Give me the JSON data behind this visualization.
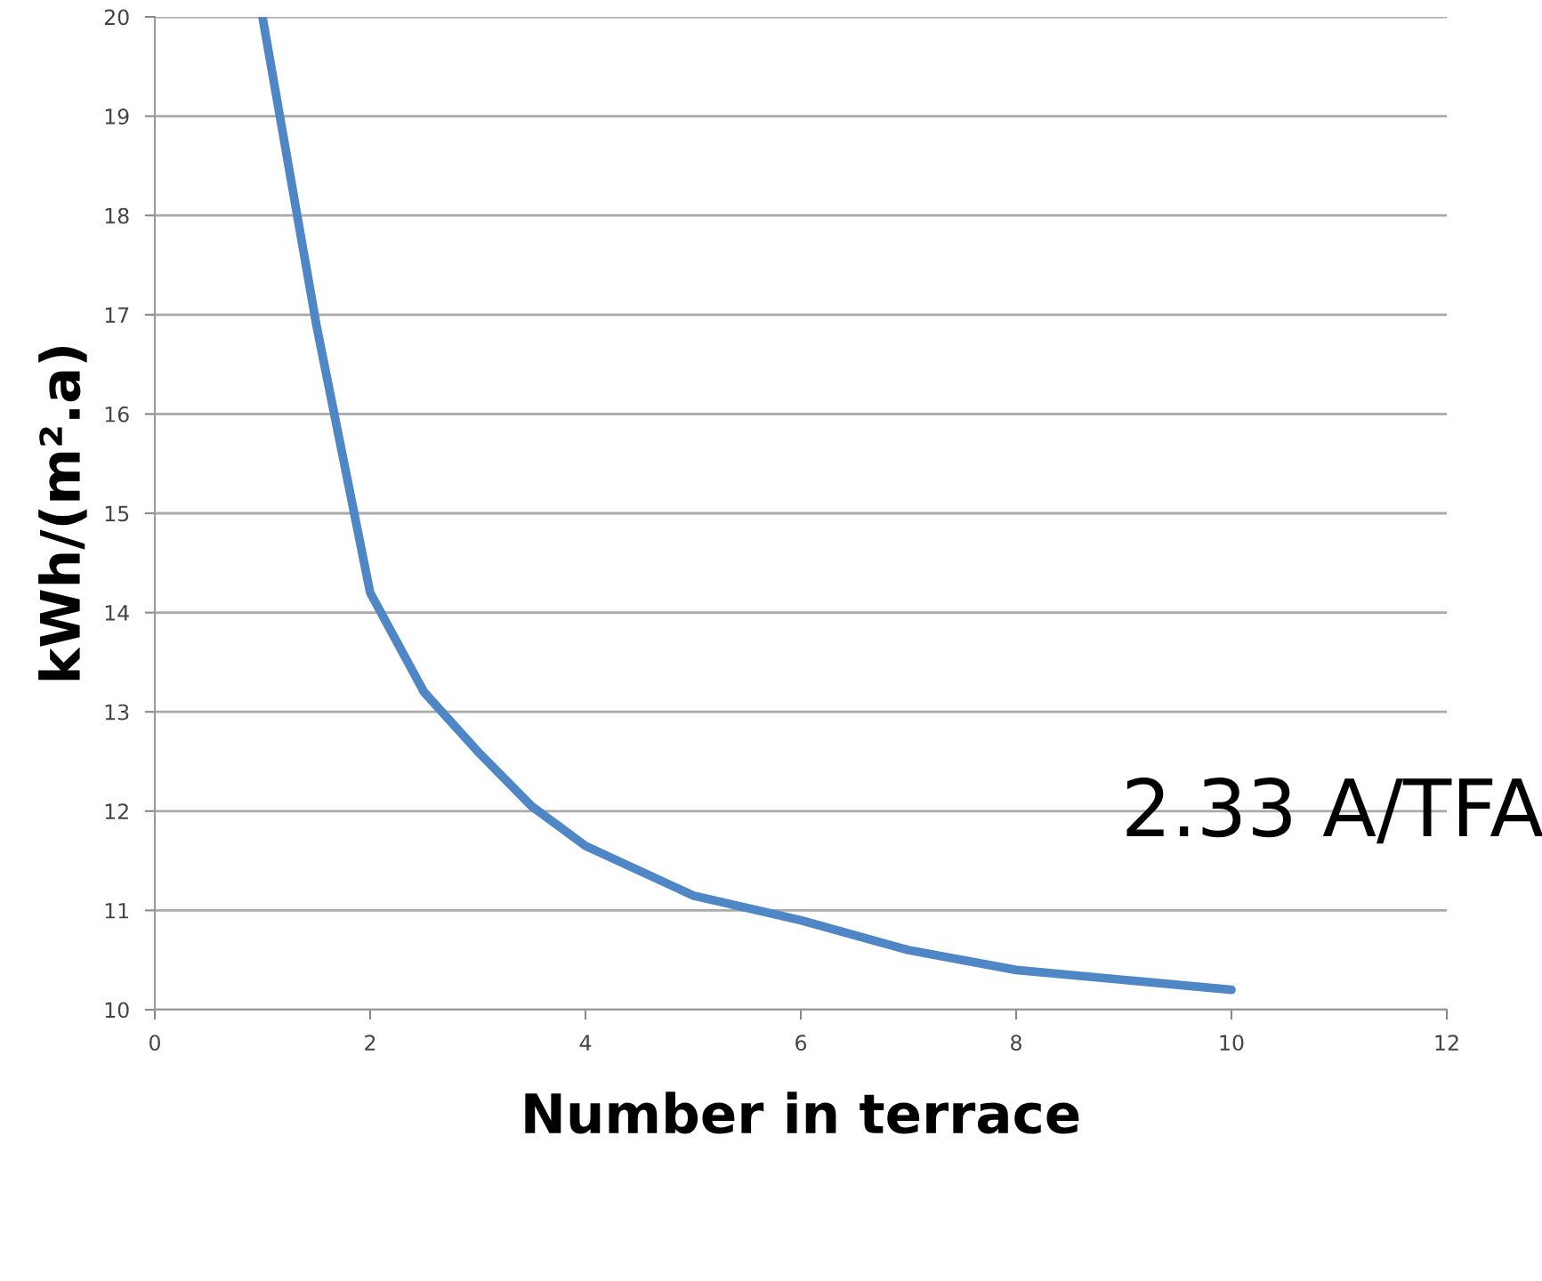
{
  "chart_data": {
    "type": "line",
    "xlabel": "Number in terrace",
    "ylabel": "kWh/(m².a)",
    "x": [
      1,
      1.5,
      2,
      2.5,
      3,
      3.5,
      4,
      5,
      6,
      7,
      8,
      9,
      10
    ],
    "series": [
      {
        "color": "#4f86c6",
        "values": [
          20,
          16.9,
          14.2,
          13.2,
          12.6,
          12.05,
          11.65,
          11.15,
          10.9,
          10.6,
          10.4,
          10.3,
          10.2
        ]
      }
    ],
    "xlim": [
      0,
      12
    ],
    "xticks": [
      0,
      2,
      4,
      6,
      8,
      10,
      12
    ],
    "ylim": [
      10,
      20
    ],
    "yticks": [
      10,
      11,
      12,
      13,
      14,
      15,
      16,
      17,
      18,
      19,
      20
    ],
    "grid": "y",
    "marker": "none",
    "line_style": "solid",
    "annotations": [
      "2.33 A/TFA"
    ]
  }
}
